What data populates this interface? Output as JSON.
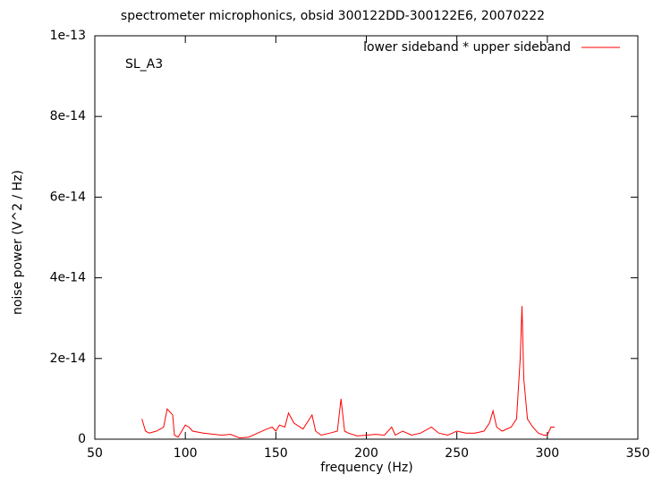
{
  "chart_data": {
    "type": "line",
    "title": "spectrometer microphonics, obsid 300122DD-300122E6, 20070222",
    "annotation": "SL_A3",
    "xlabel": "frequency (Hz)",
    "ylabel": "noise power (V^2 / Hz)",
    "xlim": [
      50,
      350
    ],
    "xticks": [
      50,
      100,
      150,
      200,
      250,
      300,
      350
    ],
    "ylim": [
      0,
      1e-13
    ],
    "yticks": [
      0,
      2e-14,
      4e-14,
      6e-14,
      8e-14,
      1e-13
    ],
    "legend": "top-right",
    "x": [
      76,
      78,
      80,
      84,
      88,
      90,
      92,
      93,
      94,
      96,
      100,
      102,
      104,
      110,
      120,
      125,
      130,
      135,
      140,
      145,
      148,
      150,
      152,
      155,
      157,
      160,
      165,
      170,
      172,
      175,
      180,
      184,
      186,
      188,
      190,
      195,
      200,
      205,
      210,
      214,
      216,
      220,
      225,
      230,
      236,
      240,
      245,
      250,
      255,
      260,
      265,
      268,
      270,
      272,
      275,
      280,
      283,
      285,
      286,
      287,
      289,
      292,
      295,
      298,
      300,
      302,
      304
    ],
    "series": [
      {
        "name": "lower sideband * upper sideband",
        "color": "#ff0000",
        "values": [
          5e-15,
          2e-15,
          1.5e-15,
          2e-15,
          3e-15,
          7.5e-15,
          6.5e-15,
          6e-15,
          1e-15,
          5e-16,
          3.5e-15,
          3e-15,
          2e-15,
          1.5e-15,
          1e-15,
          1.2e-15,
          3e-16,
          5e-16,
          1.5e-15,
          2.5e-15,
          3e-15,
          2e-15,
          3.5e-15,
          3e-15,
          6.5e-15,
          4e-15,
          2.5e-15,
          6e-15,
          2e-15,
          1e-15,
          1.5e-15,
          2e-15,
          1e-14,
          2e-15,
          1.5e-15,
          8e-16,
          1e-15,
          1.2e-15,
          1e-15,
          3e-15,
          1e-15,
          2e-15,
          1e-15,
          1.5e-15,
          3e-15,
          1.5e-15,
          1e-15,
          2e-15,
          1.5e-15,
          1.5e-15,
          2e-15,
          4e-15,
          7e-15,
          3e-15,
          2e-15,
          3e-15,
          5e-15,
          2e-14,
          3.3e-14,
          1.5e-14,
          5e-15,
          3e-15,
          1.5e-15,
          1e-15,
          1e-15,
          3e-15,
          3e-15
        ]
      }
    ]
  }
}
